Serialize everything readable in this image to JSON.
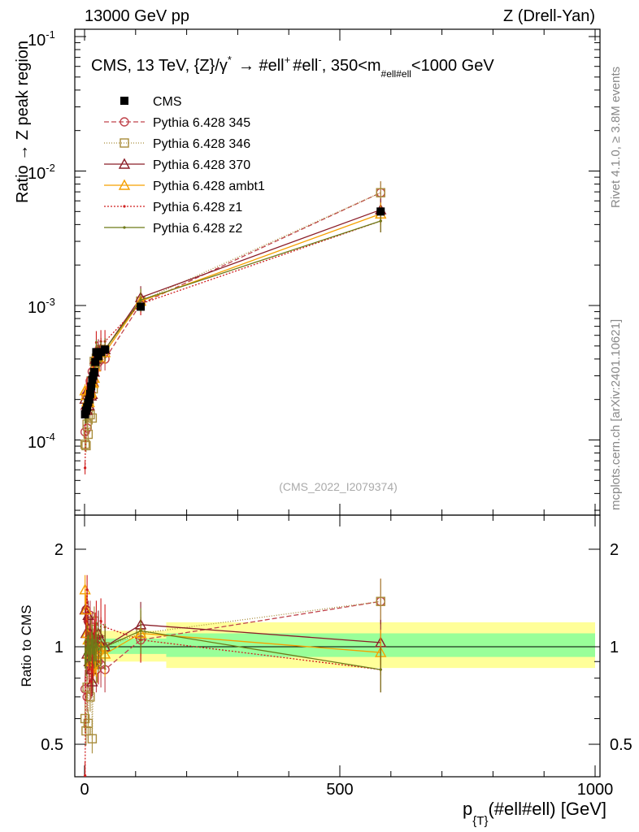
{
  "header": {
    "left": "13000 GeV pp",
    "right": "Z (Drell-Yan)"
  },
  "side": {
    "rivet": "Rivet 4.1.0, ≥ 3.8M events",
    "mcplots": "mcplots.cern.ch [arXiv:2401.10621]"
  },
  "watermark": "(CMS_2022_I2079374)",
  "colors": {
    "band_inner": "#99ff99",
    "band_outer": "#ffff99",
    "cms": "#000000",
    "p345": "#c0444c",
    "p346": "#a88c3a",
    "p370": "#8b1e28",
    "ambt1": "#f5a000",
    "z1": "#d01e1e",
    "z2": "#6e7a18"
  },
  "chart_data": {
    "type": "line",
    "title": "CMS, 13 TeV, {Z}/γ* → #ell+ #ell-, 350<m_#ell#ell<1000 GeV",
    "title_parts": {
      "t1": "CMS, 13 TeV, {Z}/γ",
      "t2": "*",
      "t3": "→  #ell",
      "t4": "+",
      "t5": "#ell",
      "t6": "-",
      "t7": ", 350<m",
      "t8": "#ell#ell",
      "t9": "<1000 GeV"
    },
    "xlabel": "p_{T}(#ell#ell) [GeV]",
    "xlabel_parts": {
      "a": "p",
      "b": "{T}",
      "c": "(#ell#ell) [GeV]"
    },
    "ylabel": "Ratio → Z peak region",
    "ylabel_ratio": "Ratio to CMS",
    "xlim": [
      -15,
      1000
    ],
    "ylim": [
      3e-05,
      0.12
    ],
    "yscale": "log",
    "ratio_ylim": [
      0.4,
      2.4
    ],
    "ratio_yscale": "log",
    "x_ticks": [
      "0",
      "500",
      "1000"
    ],
    "y_ticks": [
      {
        "base": "10",
        "exp": "-4"
      },
      {
        "base": "10",
        "exp": "-3"
      },
      {
        "base": "10",
        "exp": "-2"
      },
      {
        "base": "10",
        "exp": "-1"
      }
    ],
    "ratio_ticks": [
      "0.5",
      "1",
      "2"
    ],
    "legend_position": "top-left",
    "x": [
      1,
      3,
      5,
      7,
      9,
      11,
      13,
      15,
      17,
      19,
      21,
      23,
      27,
      32,
      40,
      110,
      580
    ],
    "cms_values": [
      0.000155,
      0.000165,
      0.000175,
      0.00019,
      0.0002,
      0.00022,
      0.00025,
      0.00028,
      0.0003,
      0.00032,
      0.00038,
      0.00045,
      0.00042,
      0.00045,
      0.00047,
      0.00098,
      0.005
    ],
    "band": [
      {
        "x0": 0,
        "x1": 160,
        "inner": [
          0.95,
          1.06
        ],
        "outer": [
          0.9,
          1.12
        ]
      },
      {
        "x0": 160,
        "x1": 1000,
        "inner": [
          0.93,
          1.1
        ],
        "outer": [
          0.86,
          1.19
        ]
      }
    ],
    "series": [
      {
        "key": "cms",
        "name": "CMS",
        "marker": "square",
        "dash": "none"
      },
      {
        "key": "p345",
        "name": "Pythia 6.428 345",
        "marker": "circle",
        "dash": "6,3",
        "ratio": [
          0.74,
          1.3,
          0.7,
          1.2,
          0.95,
          1.25,
          0.85,
          1.15,
          0.9,
          1.05,
          0.95,
          0.85,
          0.9,
          0.88,
          0.85,
          1.05,
          1.38
        ]
      },
      {
        "key": "p346",
        "name": "Pythia 6.428 346",
        "marker": "square",
        "dash": "1,2",
        "ratio": [
          0.6,
          0.55,
          0.75,
          0.58,
          0.9,
          0.7,
          1.1,
          0.52,
          0.8,
          1.2,
          0.95,
          0.9,
          1.0,
          1.05,
          1.0,
          1.1,
          1.38
        ]
      },
      {
        "key": "p370",
        "name": "Pythia 6.428 370",
        "marker": "triangle",
        "dash": "none",
        "ratio": [
          1.3,
          1.1,
          0.95,
          1.25,
          0.9,
          1.1,
          0.85,
          0.78,
          0.9,
          1.0,
          1.05,
          0.95,
          1.1,
          1.05,
          1.0,
          1.17,
          1.03
        ]
      },
      {
        "key": "ambt1",
        "name": "Pythia 6.428 ambt1",
        "marker": "triangle",
        "dash": "none",
        "ratio": [
          1.5,
          1.3,
          1.1,
          1.05,
          0.95,
          1.0,
          0.9,
          0.95,
          0.88,
          0.9,
          0.92,
          0.95,
          0.98,
          1.0,
          0.95,
          1.1,
          0.96
        ]
      },
      {
        "key": "z1",
        "name": "Pythia 6.428 z1",
        "marker": "dot",
        "dash": "2,2",
        "ratio": [
          0.4,
          1.2,
          1.5,
          1.0,
          0.85,
          1.05,
          0.78,
          0.92,
          0.88,
          1.1,
          1.15,
          1.18,
          0.9,
          1.2,
          1.15,
          1.05,
          0.85
        ]
      },
      {
        "key": "z2",
        "name": "Pythia 6.428 z2",
        "marker": "dot",
        "dash": "none",
        "ratio": [
          0.95,
          0.9,
          1.05,
          0.98,
          1.0,
          0.95,
          1.0,
          1.05,
          0.98,
          0.95,
          1.0,
          1.02,
          0.98,
          1.0,
          1.0,
          1.12,
          0.85
        ]
      }
    ]
  }
}
